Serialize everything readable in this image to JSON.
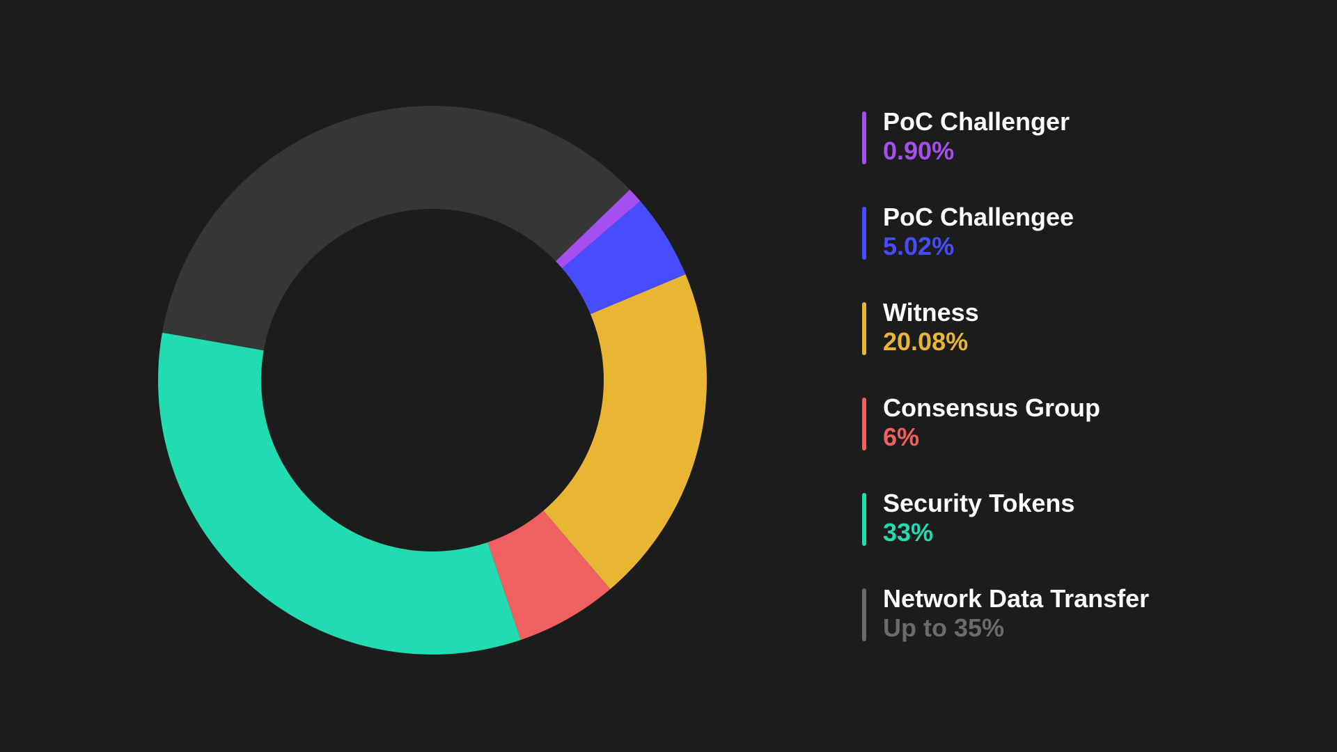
{
  "chart_data": {
    "type": "pie",
    "variant": "donut",
    "start_angle_deg": 46,
    "legend_position": "right",
    "slices": [
      {
        "label": "PoC Challenger",
        "value": 0.9,
        "display": "0.90%",
        "color": "#a64ff0"
      },
      {
        "label": "PoC Challengee",
        "value": 5.02,
        "display": "5.02%",
        "color": "#474dff"
      },
      {
        "label": "Witness",
        "value": 20.08,
        "display": "20.08%",
        "color": "#e9b634"
      },
      {
        "label": "Consensus Group",
        "value": 6,
        "display": "6%",
        "color": "#f06060"
      },
      {
        "label": "Security Tokens",
        "value": 33,
        "display": "33%",
        "color": "#20dcb0"
      },
      {
        "label": "Network Data Transfer",
        "value": 35,
        "display": "Up to 35%",
        "color": "#363636",
        "legend_color": "#6b6b6b"
      }
    ]
  }
}
